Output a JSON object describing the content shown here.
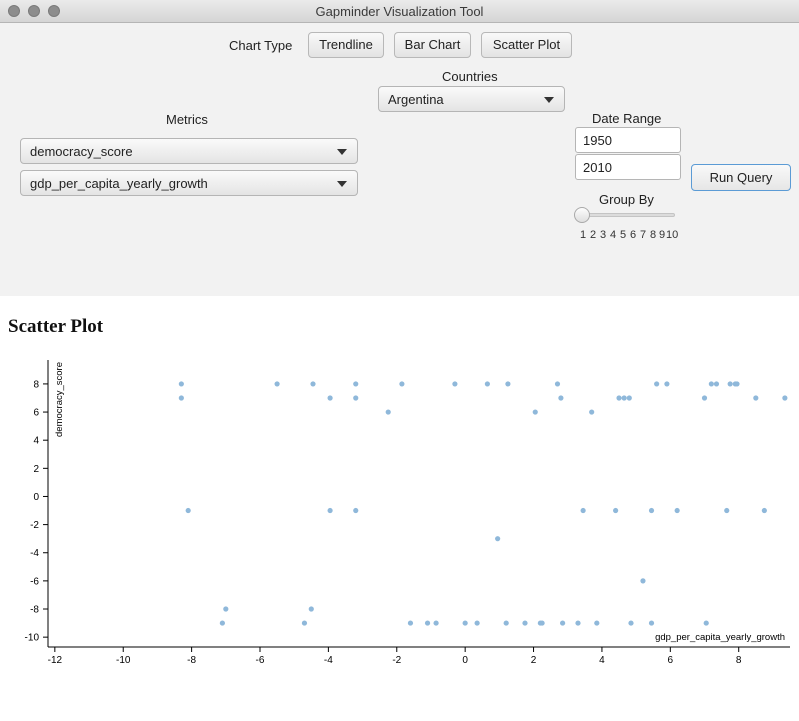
{
  "window": {
    "title": "Gapminder Visualization Tool"
  },
  "toolbar": {
    "chart_type_label": "Chart Type",
    "buttons": [
      "Trendline",
      "Bar Chart",
      "Scatter Plot"
    ]
  },
  "countries": {
    "label": "Countries",
    "selected": "Argentina"
  },
  "metrics": {
    "label": "Metrics",
    "metric1": "democracy_score",
    "metric2": "gdp_per_capita_yearly_growth"
  },
  "date_range": {
    "label": "Date Range",
    "start": "1950",
    "end": "2010"
  },
  "run_query": {
    "label": "Run Query"
  },
  "group_by": {
    "label": "Group By",
    "ticks": [
      "1",
      "2",
      "3",
      "4",
      "5",
      "6",
      "7",
      "8",
      "9",
      "10"
    ],
    "value": 1
  },
  "plot": {
    "title": "Scatter Plot",
    "colors": {
      "point": "#8fb8da"
    },
    "icons": {
      "close": "close-icon",
      "minimize": "minimize-icon",
      "zoom": "zoom-icon",
      "dropdown": "chevron-down-icon"
    }
  },
  "chart_data": {
    "type": "scatter",
    "title": "Scatter Plot",
    "xlabel": "gdp_per_capita_yearly_growth",
    "ylabel": "democracy_score",
    "xlim": [
      -12.2,
      9.5
    ],
    "ylim": [
      -10.7,
      9.7
    ],
    "xticks": [
      -12,
      -10,
      -8,
      -6,
      -4,
      -2,
      0,
      2,
      4,
      6,
      8
    ],
    "yticks": [
      -10,
      -8,
      -6,
      -4,
      -2,
      0,
      2,
      4,
      6,
      8
    ],
    "grid": false,
    "points": [
      [
        -8.3,
        8
      ],
      [
        -8.3,
        7
      ],
      [
        -8.1,
        -1
      ],
      [
        -7.1,
        -9
      ],
      [
        -7.0,
        -8
      ],
      [
        -5.5,
        8
      ],
      [
        -4.7,
        -9
      ],
      [
        -4.5,
        -8
      ],
      [
        -4.45,
        8
      ],
      [
        -3.95,
        7
      ],
      [
        -3.95,
        -1
      ],
      [
        -3.2,
        8
      ],
      [
        -3.2,
        7
      ],
      [
        -3.2,
        -1
      ],
      [
        -2.25,
        6
      ],
      [
        -1.85,
        8
      ],
      [
        -1.6,
        -9
      ],
      [
        -1.1,
        -9
      ],
      [
        -0.85,
        -9
      ],
      [
        -0.3,
        8
      ],
      [
        0.0,
        -9
      ],
      [
        0.35,
        -9
      ],
      [
        0.65,
        8
      ],
      [
        0.95,
        -3
      ],
      [
        1.2,
        -9
      ],
      [
        1.25,
        8
      ],
      [
        1.75,
        -9
      ],
      [
        2.05,
        6
      ],
      [
        2.2,
        -9
      ],
      [
        2.25,
        -9
      ],
      [
        2.7,
        8
      ],
      [
        2.8,
        7
      ],
      [
        2.85,
        -9
      ],
      [
        3.3,
        -9
      ],
      [
        3.45,
        -1
      ],
      [
        3.7,
        6
      ],
      [
        3.85,
        -9
      ],
      [
        4.4,
        -1
      ],
      [
        4.5,
        7
      ],
      [
        4.65,
        7
      ],
      [
        4.8,
        7
      ],
      [
        4.85,
        -9
      ],
      [
        5.2,
        -6
      ],
      [
        5.45,
        -1
      ],
      [
        5.45,
        -9
      ],
      [
        5.6,
        8
      ],
      [
        5.9,
        8
      ],
      [
        6.2,
        -1
      ],
      [
        7.0,
        7
      ],
      [
        7.05,
        -9
      ],
      [
        7.2,
        8
      ],
      [
        7.35,
        8
      ],
      [
        7.65,
        -1
      ],
      [
        7.75,
        8
      ],
      [
        7.9,
        8
      ],
      [
        7.95,
        8
      ],
      [
        8.5,
        7
      ],
      [
        8.75,
        -1
      ],
      [
        9.35,
        7
      ]
    ]
  }
}
